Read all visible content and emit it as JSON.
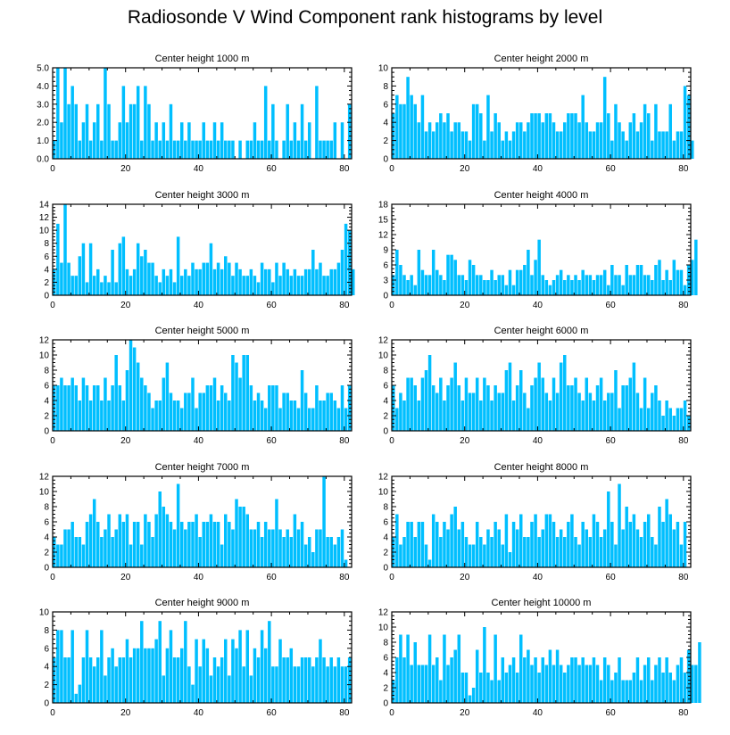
{
  "title": "Radiosonde V Wind Component rank histograms by level",
  "colors": {
    "bar": "#00bfff",
    "axis": "#000000",
    "background": "#ffffff"
  },
  "chart_data": [
    {
      "type": "bar",
      "title": "Center height 1000 m",
      "xlim": [
        0,
        82
      ],
      "ylim": [
        0,
        5
      ],
      "xticks": [
        0,
        20,
        40,
        60,
        80
      ],
      "yticks": [
        "0.0",
        "1.0",
        "2.0",
        "3.0",
        "4.0",
        "5.0"
      ],
      "values": [
        1,
        5,
        2,
        5,
        3,
        4,
        3,
        1,
        2,
        3,
        1,
        2,
        3,
        1,
        5,
        3,
        1,
        1,
        2,
        4,
        2,
        3,
        3,
        4,
        1,
        4,
        3,
        1,
        2,
        1,
        2,
        1,
        3,
        1,
        1,
        2,
        1,
        2,
        1,
        1,
        1,
        2,
        1,
        1,
        2,
        1,
        2,
        1,
        1,
        1,
        0,
        1,
        0,
        1,
        1,
        2,
        1,
        1,
        4,
        1,
        3,
        1,
        0,
        1,
        3,
        1,
        2,
        1,
        3,
        1,
        2,
        0,
        4,
        1,
        1,
        1,
        1,
        2,
        0,
        2,
        0,
        3
      ]
    },
    {
      "type": "bar",
      "title": "Center height 2000 m",
      "xlim": [
        0,
        82
      ],
      "ylim": [
        0,
        10
      ],
      "xticks": [
        0,
        20,
        40,
        60,
        80
      ],
      "yticks": [
        "0",
        "2",
        "4",
        "6",
        "8",
        "10"
      ],
      "values": [
        5,
        7,
        6,
        6,
        9,
        7,
        6,
        4,
        7,
        3,
        4,
        3,
        4,
        5,
        4,
        5,
        3,
        4,
        4,
        3,
        3,
        2,
        6,
        6,
        5,
        2,
        7,
        3,
        5,
        4,
        2,
        3,
        2,
        3,
        4,
        4,
        3,
        4,
        5,
        5,
        5,
        4,
        5,
        5,
        4,
        3,
        3,
        4,
        5,
        5,
        5,
        4,
        7,
        4,
        3,
        3,
        4,
        4,
        9,
        5,
        2,
        6,
        4,
        3,
        2,
        4,
        5,
        3,
        4,
        6,
        5,
        2,
        6,
        3,
        3,
        3,
        6,
        2,
        3,
        3,
        8,
        7,
        2
      ]
    },
    {
      "type": "bar",
      "title": "Center height 3000 m",
      "xlim": [
        0,
        82
      ],
      "ylim": [
        0,
        14
      ],
      "xticks": [
        0,
        20,
        40,
        60,
        80
      ],
      "yticks": [
        "0",
        "2",
        "4",
        "6",
        "8",
        "10",
        "12",
        "14"
      ],
      "values": [
        4,
        11,
        5,
        14,
        5,
        3,
        3,
        6,
        8,
        2,
        8,
        3,
        4,
        2,
        3,
        2,
        7,
        2,
        8,
        9,
        4,
        3,
        4,
        8,
        6,
        7,
        5,
        5,
        3,
        2,
        4,
        3,
        4,
        2,
        9,
        3,
        4,
        3,
        5,
        4,
        4,
        5,
        5,
        8,
        4,
        5,
        4,
        6,
        5,
        3,
        5,
        4,
        3,
        3,
        4,
        3,
        2,
        5,
        4,
        4,
        2,
        5,
        3,
        5,
        4,
        3,
        4,
        3,
        3,
        4,
        4,
        7,
        4,
        5,
        3,
        3,
        4,
        4,
        5,
        7,
        11,
        10,
        4
      ]
    },
    {
      "type": "bar",
      "title": "Center height 4000 m",
      "xlim": [
        0,
        82
      ],
      "ylim": [
        0,
        18
      ],
      "xticks": [
        0,
        20,
        40,
        60,
        80
      ],
      "yticks": [
        "0",
        "3",
        "6",
        "9",
        "12",
        "15",
        "18"
      ],
      "values": [
        4,
        9,
        6,
        4,
        3,
        4,
        2,
        9,
        5,
        4,
        4,
        9,
        5,
        4,
        3,
        8,
        8,
        7,
        4,
        4,
        3,
        7,
        6,
        4,
        4,
        3,
        3,
        5,
        3,
        4,
        4,
        2,
        5,
        2,
        5,
        5,
        6,
        9,
        4,
        7,
        11,
        4,
        3,
        2,
        3,
        4,
        5,
        3,
        4,
        3,
        4,
        3,
        5,
        4,
        4,
        3,
        4,
        4,
        5,
        2,
        6,
        4,
        4,
        2,
        6,
        4,
        4,
        6,
        6,
        4,
        4,
        3,
        6,
        7,
        3,
        5,
        3,
        7,
        5,
        5,
        2,
        6,
        7,
        11
      ]
    },
    {
      "type": "bar",
      "title": "Center height 5000 m",
      "xlim": [
        0,
        82
      ],
      "ylim": [
        0,
        12
      ],
      "xticks": [
        0,
        20,
        40,
        60,
        80
      ],
      "yticks": [
        "0",
        "2",
        "4",
        "6",
        "8",
        "10",
        "12"
      ],
      "values": [
        6,
        6,
        7,
        6,
        6,
        7,
        6,
        4,
        7,
        6,
        4,
        6,
        6,
        4,
        7,
        4,
        6,
        10,
        6,
        4,
        8,
        12,
        11,
        9,
        7,
        6,
        5,
        3,
        4,
        4,
        7,
        9,
        5,
        4,
        4,
        3,
        5,
        5,
        7,
        3,
        5,
        5,
        6,
        6,
        7,
        4,
        6,
        5,
        4,
        10,
        9,
        7,
        10,
        10,
        6,
        4,
        5,
        4,
        3,
        6,
        6,
        6,
        3,
        5,
        5,
        4,
        4,
        3,
        8,
        5,
        3,
        3,
        6,
        4,
        4,
        5,
        5,
        4,
        3,
        6,
        3,
        6
      ]
    },
    {
      "type": "bar",
      "title": "Center height 6000 m",
      "xlim": [
        0,
        82
      ],
      "ylim": [
        0,
        12
      ],
      "xticks": [
        0,
        20,
        40,
        60,
        80
      ],
      "yticks": [
        "0",
        "2",
        "4",
        "6",
        "8",
        "10",
        "12"
      ],
      "values": [
        6,
        3,
        5,
        4,
        7,
        7,
        6,
        4,
        7,
        8,
        10,
        6,
        5,
        7,
        4,
        6,
        7,
        9,
        6,
        4,
        7,
        5,
        5,
        7,
        4,
        7,
        6,
        4,
        6,
        5,
        5,
        8,
        9,
        4,
        6,
        8,
        5,
        3,
        6,
        7,
        9,
        7,
        5,
        4,
        7,
        5,
        9,
        10,
        6,
        6,
        7,
        5,
        4,
        7,
        5,
        4,
        6,
        7,
        4,
        5,
        5,
        8,
        3,
        6,
        6,
        7,
        9,
        5,
        3,
        7,
        3,
        5,
        6,
        4,
        2,
        4,
        3,
        2,
        3,
        3,
        4,
        2
      ]
    },
    {
      "type": "bar",
      "title": "Center height 7000 m",
      "xlim": [
        0,
        82
      ],
      "ylim": [
        0,
        12
      ],
      "xticks": [
        0,
        20,
        40,
        60,
        80
      ],
      "yticks": [
        "0",
        "2",
        "4",
        "6",
        "8",
        "10",
        "12"
      ],
      "values": [
        4,
        3,
        3,
        5,
        5,
        6,
        4,
        4,
        3,
        6,
        7,
        9,
        6,
        4,
        5,
        7,
        4,
        5,
        7,
        6,
        7,
        3,
        6,
        6,
        3,
        7,
        6,
        4,
        7,
        10,
        8,
        7,
        6,
        5,
        11,
        6,
        5,
        6,
        6,
        7,
        4,
        6,
        6,
        7,
        6,
        6,
        3,
        7,
        6,
        5,
        9,
        8,
        8,
        7,
        5,
        5,
        6,
        4,
        6,
        5,
        5,
        9,
        5,
        4,
        5,
        4,
        7,
        5,
        6,
        3,
        4,
        2,
        5,
        5,
        12,
        4,
        4,
        3,
        4,
        5,
        1
      ]
    },
    {
      "type": "bar",
      "title": "Center height 8000 m",
      "xlim": [
        0,
        82
      ],
      "ylim": [
        0,
        12
      ],
      "xticks": [
        0,
        20,
        40,
        60,
        80
      ],
      "yticks": [
        "0",
        "2",
        "4",
        "6",
        "8",
        "10",
        "12"
      ],
      "values": [
        4,
        7,
        3,
        4,
        6,
        6,
        4,
        6,
        6,
        3,
        1,
        7,
        6,
        4,
        6,
        5,
        7,
        8,
        5,
        6,
        4,
        3,
        3,
        6,
        4,
        3,
        5,
        4,
        6,
        5,
        3,
        7,
        2,
        6,
        5,
        7,
        4,
        4,
        6,
        7,
        4,
        5,
        7,
        7,
        6,
        4,
        5,
        4,
        6,
        7,
        4,
        3,
        6,
        5,
        4,
        7,
        6,
        4,
        5,
        10,
        6,
        3,
        11,
        5,
        8,
        6,
        7,
        5,
        4,
        6,
        7,
        4,
        3,
        8,
        6,
        9,
        7,
        5,
        6,
        3,
        6
      ]
    },
    {
      "type": "bar",
      "title": "Center height 9000 m",
      "xlim": [
        0,
        82
      ],
      "ylim": [
        0,
        10
      ],
      "xticks": [
        0,
        20,
        40,
        60,
        80
      ],
      "yticks": [
        "0",
        "2",
        "4",
        "6",
        "8",
        "10"
      ],
      "values": [
        5,
        8,
        8,
        5,
        5,
        8,
        1,
        2,
        5,
        8,
        5,
        4,
        5,
        8,
        3,
        5,
        6,
        4,
        5,
        5,
        7,
        5,
        6,
        6,
        9,
        6,
        6,
        6,
        7,
        9,
        3,
        6,
        8,
        5,
        5,
        6,
        9,
        4,
        2,
        7,
        4,
        7,
        6,
        3,
        5,
        4,
        5,
        7,
        3,
        7,
        6,
        8,
        4,
        8,
        3,
        6,
        5,
        8,
        6,
        9,
        4,
        4,
        7,
        5,
        5,
        6,
        4,
        4,
        5,
        5,
        5,
        4,
        5,
        7,
        5,
        4,
        5,
        4,
        5,
        4,
        4,
        5
      ]
    },
    {
      "type": "bar",
      "title": "Center height 10000 m",
      "xlim": [
        0,
        82
      ],
      "ylim": [
        0,
        12
      ],
      "xticks": [
        0,
        20,
        40,
        60,
        80
      ],
      "yticks": [
        "0",
        "2",
        "4",
        "6",
        "8",
        "10",
        "12"
      ],
      "values": [
        3,
        6,
        9,
        6,
        9,
        5,
        8,
        5,
        5,
        5,
        9,
        5,
        6,
        3,
        9,
        5,
        6,
        7,
        9,
        4,
        4,
        1,
        2,
        7,
        4,
        10,
        4,
        3,
        9,
        3,
        6,
        4,
        5,
        6,
        4,
        9,
        6,
        7,
        5,
        6,
        4,
        6,
        5,
        7,
        5,
        7,
        5,
        4,
        5,
        6,
        6,
        5,
        6,
        5,
        5,
        6,
        5,
        3,
        6,
        5,
        3,
        4,
        6,
        3,
        3,
        3,
        4,
        6,
        3,
        5,
        6,
        3,
        5,
        6,
        4,
        6,
        4,
        3,
        5,
        6,
        4,
        7,
        5,
        5,
        8
      ]
    }
  ]
}
